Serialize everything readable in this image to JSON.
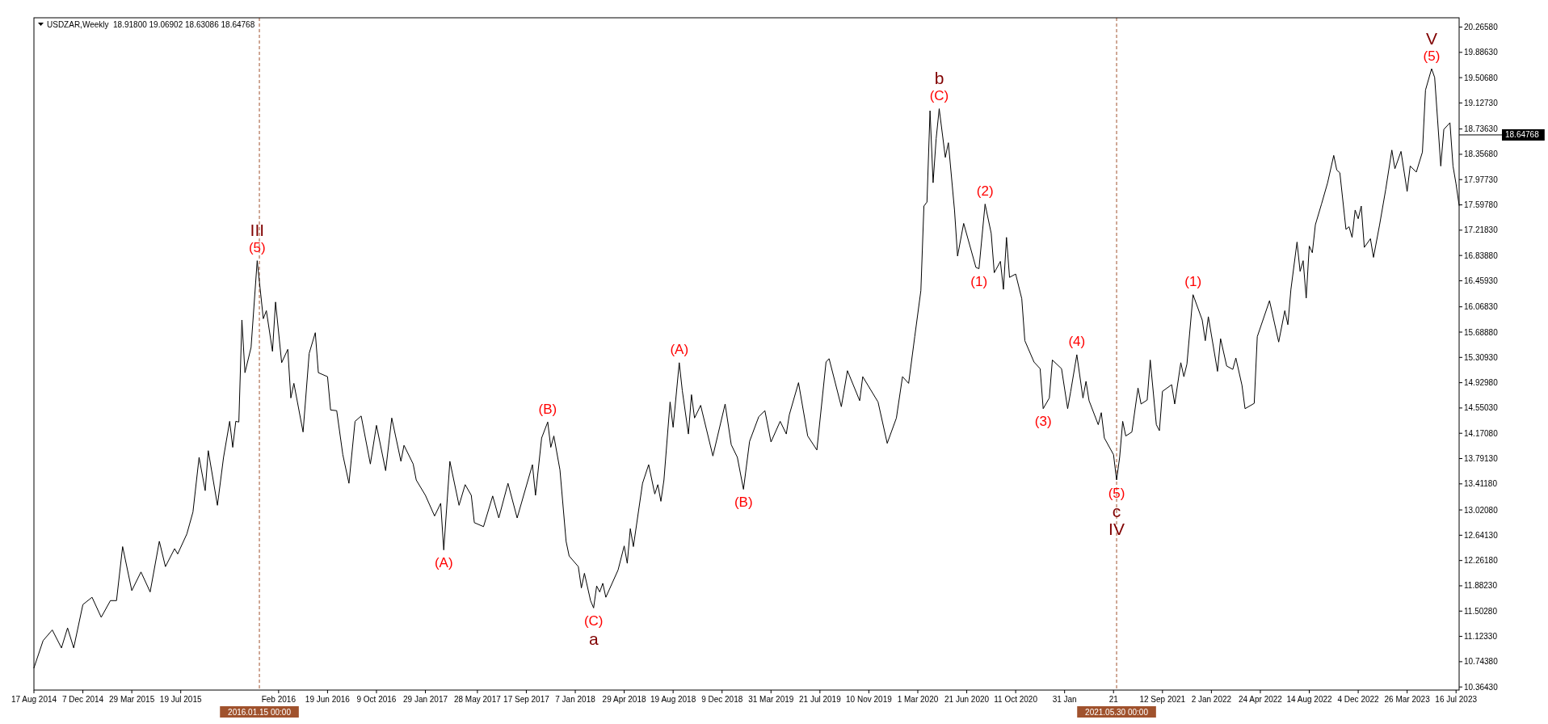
{
  "chart_data": {
    "type": "line",
    "title": "USDZAR,Weekly  18.91800 19.06902 18.63086 18.64768",
    "x": [
      "2014-08-17",
      "2014-09-07",
      "2014-09-28",
      "2014-10-19",
      "2014-11-02",
      "2014-11-16",
      "2014-12-07",
      "2014-12-28",
      "2015-01-18",
      "2015-02-08",
      "2015-02-22",
      "2015-03-08",
      "2015-03-29",
      "2015-04-19",
      "2015-05-10",
      "2015-05-31",
      "2015-06-14",
      "2015-07-05",
      "2015-07-12",
      "2015-08-02",
      "2015-08-16",
      "2015-08-30",
      "2015-09-13",
      "2015-09-20",
      "2015-10-11",
      "2015-10-25",
      "2015-11-08",
      "2015-11-15",
      "2015-11-22",
      "2015-11-29",
      "2015-12-06",
      "2015-12-13",
      "2015-12-27",
      "2016-01-10",
      "2016-01-24",
      "2016-01-31",
      "2016-02-14",
      "2016-02-21",
      "2016-03-06",
      "2016-03-20",
      "2016-03-27",
      "2016-04-03",
      "2016-04-24",
      "2016-05-08",
      "2016-05-22",
      "2016-05-29",
      "2016-06-19",
      "2016-06-26",
      "2016-07-10",
      "2016-07-24",
      "2016-08-07",
      "2016-08-21",
      "2016-09-04",
      "2016-09-25",
      "2016-10-09",
      "2016-10-30",
      "2016-11-13",
      "2016-12-04",
      "2016-12-11",
      "2017-01-01",
      "2017-01-08",
      "2017-01-29",
      "2017-02-19",
      "2017-03-05",
      "2017-03-12",
      "2017-03-26",
      "2017-04-16",
      "2017-04-30",
      "2017-05-14",
      "2017-05-21",
      "2017-06-11",
      "2017-07-02",
      "2017-07-16",
      "2017-08-06",
      "2017-08-27",
      "2017-10-01",
      "2017-10-08",
      "2017-10-22",
      "2017-11-05",
      "2017-11-12",
      "2017-11-19",
      "2017-12-03",
      "2017-12-17",
      "2017-12-24",
      "2018-01-14",
      "2018-01-21",
      "2018-01-28",
      "2018-02-11",
      "2018-02-18",
      "2018-02-25",
      "2018-03-04",
      "2018-03-11",
      "2018-03-18",
      "2018-04-15",
      "2018-04-29",
      "2018-05-06",
      "2018-05-13",
      "2018-05-20",
      "2018-06-10",
      "2018-06-24",
      "2018-07-08",
      "2018-07-15",
      "2018-07-22",
      "2018-07-29",
      "2018-08-12",
      "2018-08-19",
      "2018-09-02",
      "2018-09-09",
      "2018-09-23",
      "2018-09-30",
      "2018-10-07",
      "2018-10-21",
      "2018-11-18",
      "2018-12-16",
      "2018-12-30",
      "2019-01-13",
      "2019-01-27",
      "2019-02-10",
      "2019-03-03",
      "2019-03-17",
      "2019-03-31",
      "2019-04-21",
      "2019-05-05",
      "2019-05-12",
      "2019-06-02",
      "2019-06-23",
      "2019-07-14",
      "2019-08-04",
      "2019-08-11",
      "2019-09-08",
      "2019-09-22",
      "2019-10-20",
      "2019-10-27",
      "2019-12-01",
      "2019-12-22",
      "2020-01-12",
      "2020-01-26",
      "2020-02-09",
      "2020-02-23",
      "2020-03-08",
      "2020-03-15",
      "2020-03-22",
      "2020-03-29",
      "2020-04-05",
      "2020-04-12",
      "2020-04-19",
      "2020-05-03",
      "2020-05-10",
      "2020-05-24",
      "2020-05-31",
      "2020-06-14",
      "2020-07-12",
      "2020-07-19",
      "2020-08-02",
      "2020-08-16",
      "2020-08-23",
      "2020-09-06",
      "2020-09-13",
      "2020-09-20",
      "2020-09-27",
      "2020-10-11",
      "2020-10-25",
      "2020-11-01",
      "2020-11-22",
      "2020-12-06",
      "2020-12-13",
      "2020-12-27",
      "2021-01-03",
      "2021-01-24",
      "2021-02-07",
      "2021-02-14",
      "2021-02-28",
      "2021-03-14",
      "2021-03-21",
      "2021-03-28",
      "2021-04-18",
      "2021-04-25",
      "2021-05-02",
      "2021-05-23",
      "2021-05-30",
      "2021-06-06",
      "2021-06-13",
      "2021-06-20",
      "2021-07-04",
      "2021-07-18",
      "2021-07-25",
      "2021-08-08",
      "2021-08-15",
      "2021-08-29",
      "2021-09-05",
      "2021-09-12",
      "2021-10-03",
      "2021-10-10",
      "2021-10-24",
      "2021-10-31",
      "2021-11-07",
      "2021-11-21",
      "2021-12-12",
      "2021-12-19",
      "2021-12-26",
      "2022-01-16",
      "2022-01-23",
      "2022-02-06",
      "2022-02-20",
      "2022-02-27",
      "2022-03-13",
      "2022-03-20",
      "2022-04-10",
      "2022-04-17",
      "2022-05-15",
      "2022-06-05",
      "2022-06-19",
      "2022-06-26",
      "2022-07-03",
      "2022-07-17",
      "2022-07-24",
      "2022-07-31",
      "2022-08-07",
      "2022-08-14",
      "2022-08-21",
      "2022-08-28",
      "2022-09-11",
      "2022-09-25",
      "2022-10-09",
      "2022-10-16",
      "2022-10-23",
      "2022-11-06",
      "2022-11-13",
      "2022-11-20",
      "2022-11-27",
      "2022-12-04",
      "2022-12-11",
      "2022-12-18",
      "2023-01-01",
      "2023-01-08",
      "2023-01-22",
      "2023-02-05",
      "2023-02-19",
      "2023-02-26",
      "2023-03-12",
      "2023-03-26",
      "2023-04-02",
      "2023-04-16",
      "2023-04-30",
      "2023-05-07",
      "2023-05-21",
      "2023-05-28",
      "2023-06-11",
      "2023-06-18",
      "2023-07-02",
      "2023-07-09",
      "2023-07-16",
      "2023-07-23"
    ],
    "series": [
      {
        "color": "#000000",
        "values": [
          10.65,
          11.06,
          11.22,
          10.95,
          11.25,
          10.95,
          11.6,
          11.71,
          11.41,
          11.66,
          11.66,
          12.47,
          11.81,
          12.09,
          11.79,
          12.55,
          12.17,
          12.44,
          12.36,
          12.66,
          12.99,
          13.81,
          13.31,
          13.91,
          13.09,
          13.81,
          14.35,
          13.96,
          14.35,
          14.34,
          15.87,
          15.08,
          15.46,
          16.76,
          15.89,
          16.01,
          15.4,
          16.14,
          15.23,
          15.43,
          14.7,
          14.92,
          14.19,
          15.37,
          15.68,
          15.08,
          15.02,
          14.52,
          14.51,
          13.85,
          13.42,
          14.35,
          14.43,
          13.71,
          14.29,
          13.61,
          14.4,
          13.75,
          13.99,
          13.71,
          13.47,
          13.24,
          12.93,
          13.12,
          12.42,
          13.75,
          13.09,
          13.4,
          13.24,
          12.83,
          12.77,
          13.23,
          12.9,
          13.42,
          12.9,
          13.7,
          13.24,
          14.1,
          14.34,
          13.96,
          14.13,
          13.62,
          12.55,
          12.33,
          12.17,
          11.85,
          12.07,
          11.66,
          11.55,
          11.88,
          11.79,
          11.92,
          11.71,
          12.12,
          12.48,
          12.22,
          12.74,
          12.47,
          13.42,
          13.7,
          13.26,
          13.4,
          13.15,
          13.47,
          14.64,
          14.26,
          15.23,
          14.81,
          14.16,
          14.75,
          14.4,
          14.59,
          13.83,
          14.61,
          14.0,
          13.81,
          13.33,
          14.05,
          14.42,
          14.51,
          14.04,
          14.35,
          14.16,
          14.45,
          14.93,
          14.13,
          13.92,
          15.24,
          15.29,
          14.57,
          15.11,
          14.66,
          15.02,
          14.64,
          14.02,
          14.4,
          15.02,
          14.92,
          15.62,
          16.31,
          17.58,
          17.64,
          19.01,
          17.93,
          18.59,
          19.04,
          18.31,
          18.53,
          17.52,
          16.83,
          17.32,
          16.66,
          16.64,
          17.61,
          17.17,
          16.58,
          16.75,
          16.33,
          17.11,
          16.51,
          16.56,
          16.19,
          15.56,
          15.24,
          15.14,
          14.54,
          14.7,
          15.27,
          15.14,
          14.54,
          14.8,
          15.35,
          14.7,
          14.95,
          14.66,
          14.3,
          14.48,
          14.1,
          13.85,
          13.47,
          13.81,
          14.35,
          14.13,
          14.19,
          14.85,
          14.61,
          14.67,
          15.27,
          14.3,
          14.21,
          14.8,
          14.9,
          14.61,
          15.23,
          15.02,
          15.21,
          16.25,
          15.87,
          15.56,
          15.92,
          15.1,
          15.59,
          15.18,
          15.13,
          15.3,
          14.89,
          14.54,
          14.62,
          15.62,
          16.16,
          15.54,
          16.01,
          15.8,
          16.33,
          17.04,
          16.6,
          16.76,
          16.2,
          16.98,
          16.88,
          17.3,
          17.61,
          17.93,
          18.34,
          18.12,
          18.08,
          17.23,
          17.27,
          17.11,
          17.52,
          17.39,
          17.58,
          16.96,
          17.09,
          16.81,
          17.3,
          17.83,
          18.42,
          18.14,
          18.4,
          17.8,
          18.18,
          18.09,
          18.39,
          19.32,
          19.64,
          19.51,
          18.18,
          18.73,
          18.83,
          18.18,
          17.91,
          17.59
        ]
      }
    ],
    "xlim": [
      "2014-08-17",
      "2023-07-23"
    ],
    "ylim": [
      10.318,
      20.405
    ],
    "xticks": [
      {
        "value": "2014-08-17",
        "label": "17 Aug 2014"
      },
      {
        "value": "2014-12-07",
        "label": "7 Dec 2014"
      },
      {
        "value": "2015-03-29",
        "label": "29 Mar 2015"
      },
      {
        "value": "2015-07-19",
        "label": "19 Jul 2015"
      },
      {
        "value": "2016-02-28",
        "label": "Feb 2016"
      },
      {
        "value": "2016-06-19",
        "label": "19 Jun 2016"
      },
      {
        "value": "2016-10-09",
        "label": "9 Oct 2016"
      },
      {
        "value": "2017-01-29",
        "label": "29 Jan 2017"
      },
      {
        "value": "2017-05-28",
        "label": "28 May 2017"
      },
      {
        "value": "2017-09-17",
        "label": "17 Sep 2017"
      },
      {
        "value": "2018-01-07",
        "label": "7 Jan 2018"
      },
      {
        "value": "2018-04-29",
        "label": "29 Apr 2018"
      },
      {
        "value": "2018-08-19",
        "label": "19 Aug 2018"
      },
      {
        "value": "2018-12-09",
        "label": "9 Dec 2018"
      },
      {
        "value": "2019-03-31",
        "label": "31 Mar 2019"
      },
      {
        "value": "2019-07-21",
        "label": "21 Jul 2019"
      },
      {
        "value": "2019-11-10",
        "label": "10 Nov 2019"
      },
      {
        "value": "2020-03-01",
        "label": "1 Mar 2020"
      },
      {
        "value": "2020-06-21",
        "label": "21 Jun 2020"
      },
      {
        "value": "2020-10-11",
        "label": "11 Oct 2020"
      },
      {
        "value": "2021-01-31",
        "label": "31 Jan"
      },
      {
        "value": "2021-05-23",
        "label": "21"
      },
      {
        "value": "2021-09-12",
        "label": "12 Sep 2021"
      },
      {
        "value": "2022-01-02",
        "label": "2 Jan 2022"
      },
      {
        "value": "2022-04-24",
        "label": "24 Apr 2022"
      },
      {
        "value": "2022-08-14",
        "label": "14 Aug 2022"
      },
      {
        "value": "2022-12-04",
        "label": "4 Dec 2022"
      },
      {
        "value": "2023-03-26",
        "label": "26 Mar 2023"
      },
      {
        "value": "2023-07-16",
        "label": "16 Jul 2023"
      }
    ],
    "yticks": [
      {
        "value": 10.3643,
        "label": "10.36430"
      },
      {
        "value": 10.7438,
        "label": "10.74380"
      },
      {
        "value": 11.1233,
        "label": "11.12330"
      },
      {
        "value": 11.5028,
        "label": "11.50280"
      },
      {
        "value": 11.8823,
        "label": "11.88230"
      },
      {
        "value": 12.2618,
        "label": "12.26180"
      },
      {
        "value": 12.6413,
        "label": "12.64130"
      },
      {
        "value": 13.0208,
        "label": "13.02080"
      },
      {
        "value": 13.4118,
        "label": "13.41180"
      },
      {
        "value": 13.7913,
        "label": "13.79130"
      },
      {
        "value": 14.1708,
        "label": "14.17080"
      },
      {
        "value": 14.5503,
        "label": "14.55030"
      },
      {
        "value": 14.9298,
        "label": "14.92980"
      },
      {
        "value": 15.3093,
        "label": "15.30930"
      },
      {
        "value": 15.6888,
        "label": "15.68880"
      },
      {
        "value": 16.0683,
        "label": "16.06830"
      },
      {
        "value": 16.4593,
        "label": "16.45930"
      },
      {
        "value": 16.8388,
        "label": "16.83880"
      },
      {
        "value": 17.2183,
        "label": "17.21830"
      },
      {
        "value": 17.5978,
        "label": "17.59780"
      },
      {
        "value": 17.9773,
        "label": "17.97730"
      },
      {
        "value": 18.3568,
        "label": "18.35680"
      },
      {
        "value": 18.7363,
        "label": "18.73630"
      },
      {
        "value": 19.1273,
        "label": "19.12730"
      },
      {
        "value": 19.5068,
        "label": "19.50680"
      },
      {
        "value": 19.8863,
        "label": "19.88630"
      },
      {
        "value": 20.2658,
        "label": "20.26580"
      }
    ],
    "ref_lines": [
      {
        "axis": "x",
        "value": "2016-01-15",
        "label": "2016.01.15 00:00",
        "color": "#a0522d",
        "line_style": "dashed"
      },
      {
        "axis": "x",
        "value": "2021-05-30",
        "label": "2021.05.30 00:00",
        "color": "#a0522d",
        "line_style": "dashed"
      },
      {
        "axis": "y",
        "value": 18.64768,
        "label": "18.64768",
        "color": "#000000"
      }
    ],
    "annotations": [
      {
        "text": "(5)",
        "x": "2016-01-10",
        "y": 16.76
      },
      {
        "text": "III",
        "x": "2016-01-10",
        "y": 16.76
      },
      {
        "text": "(A)",
        "x": "2017-03-12",
        "y": 12.42
      },
      {
        "text": "(B)",
        "x": "2017-11-05",
        "y": 14.34
      },
      {
        "text": "(C)",
        "x": "2018-02-18",
        "y": 11.55
      },
      {
        "text": "a",
        "x": "2018-02-18",
        "y": 11.55
      },
      {
        "text": "(A)",
        "x": "2018-09-02",
        "y": 15.23
      },
      {
        "text": "(B)",
        "x": "2019-01-27",
        "y": 13.33
      },
      {
        "text": "(C)",
        "x": "2020-04-19",
        "y": 19.04
      },
      {
        "text": "b",
        "x": "2020-04-19",
        "y": 19.04
      },
      {
        "text": "(1)",
        "x": "2020-07-19",
        "y": 16.64
      },
      {
        "text": "(2)",
        "x": "2020-08-02",
        "y": 17.61
      },
      {
        "text": "(3)",
        "x": "2020-12-13",
        "y": 14.54
      },
      {
        "text": "(4)",
        "x": "2021-02-28",
        "y": 15.35
      },
      {
        "text": "(5)",
        "x": "2021-05-30",
        "y": 13.47
      },
      {
        "text": "c",
        "x": "2021-05-30",
        "y": 13.47
      },
      {
        "text": "IV",
        "x": "2021-05-30",
        "y": 13.47
      },
      {
        "text": "(1)",
        "x": "2021-11-21",
        "y": 16.25
      },
      {
        "text": "(5)",
        "x": "2023-05-21",
        "y": 19.64
      },
      {
        "text": "V",
        "x": "2023-05-21",
        "y": 19.64
      }
    ]
  }
}
